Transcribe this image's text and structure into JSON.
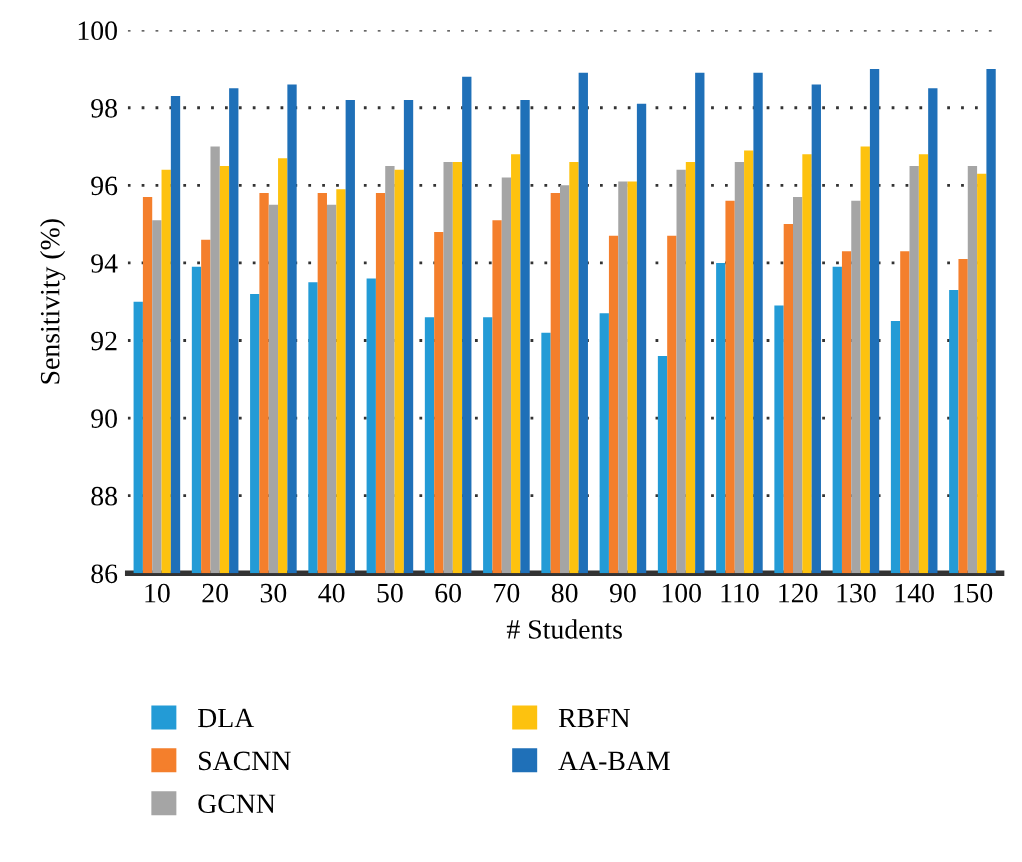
{
  "chart_data": {
    "type": "bar",
    "xlabel": "# Students",
    "ylabel": "Sensitivity (%)",
    "categories": [
      "10",
      "20",
      "30",
      "40",
      "50",
      "60",
      "70",
      "80",
      "90",
      "100",
      "110",
      "120",
      "130",
      "140",
      "150"
    ],
    "series": [
      {
        "name": "DLA",
        "color": "#239bd6",
        "values": [
          93.0,
          93.9,
          93.2,
          93.5,
          93.6,
          92.6,
          92.6,
          92.2,
          92.7,
          91.6,
          94.0,
          92.9,
          93.9,
          92.5,
          93.3
        ]
      },
      {
        "name": "SACNN",
        "color": "#f47f2c",
        "values": [
          95.7,
          94.6,
          95.8,
          95.8,
          95.8,
          94.8,
          95.1,
          95.8,
          94.7,
          94.7,
          95.6,
          95.0,
          94.3,
          94.3,
          94.1
        ]
      },
      {
        "name": "GCNN",
        "color": "#a5a5a5",
        "values": [
          95.1,
          97.0,
          95.5,
          95.5,
          96.5,
          96.6,
          96.2,
          96.0,
          96.1,
          96.4,
          96.6,
          95.7,
          95.6,
          96.5,
          96.5
        ]
      },
      {
        "name": "RBFN",
        "color": "#fdc20f",
        "values": [
          96.4,
          96.5,
          96.7,
          95.9,
          96.4,
          96.6,
          96.8,
          96.6,
          96.1,
          96.6,
          96.9,
          96.8,
          97.0,
          96.8,
          96.3
        ]
      },
      {
        "name": "AA-BAM",
        "color": "#1f70b8",
        "values": [
          98.3,
          98.5,
          98.6,
          98.2,
          98.2,
          98.8,
          98.2,
          98.9,
          98.1,
          98.9,
          98.9,
          98.6,
          99.0,
          98.5,
          99.0
        ]
      }
    ],
    "ylim": [
      86,
      100
    ],
    "yticks": [
      86,
      88,
      90,
      92,
      94,
      96,
      98,
      100
    ],
    "grid": "y",
    "legend": "bottom"
  }
}
